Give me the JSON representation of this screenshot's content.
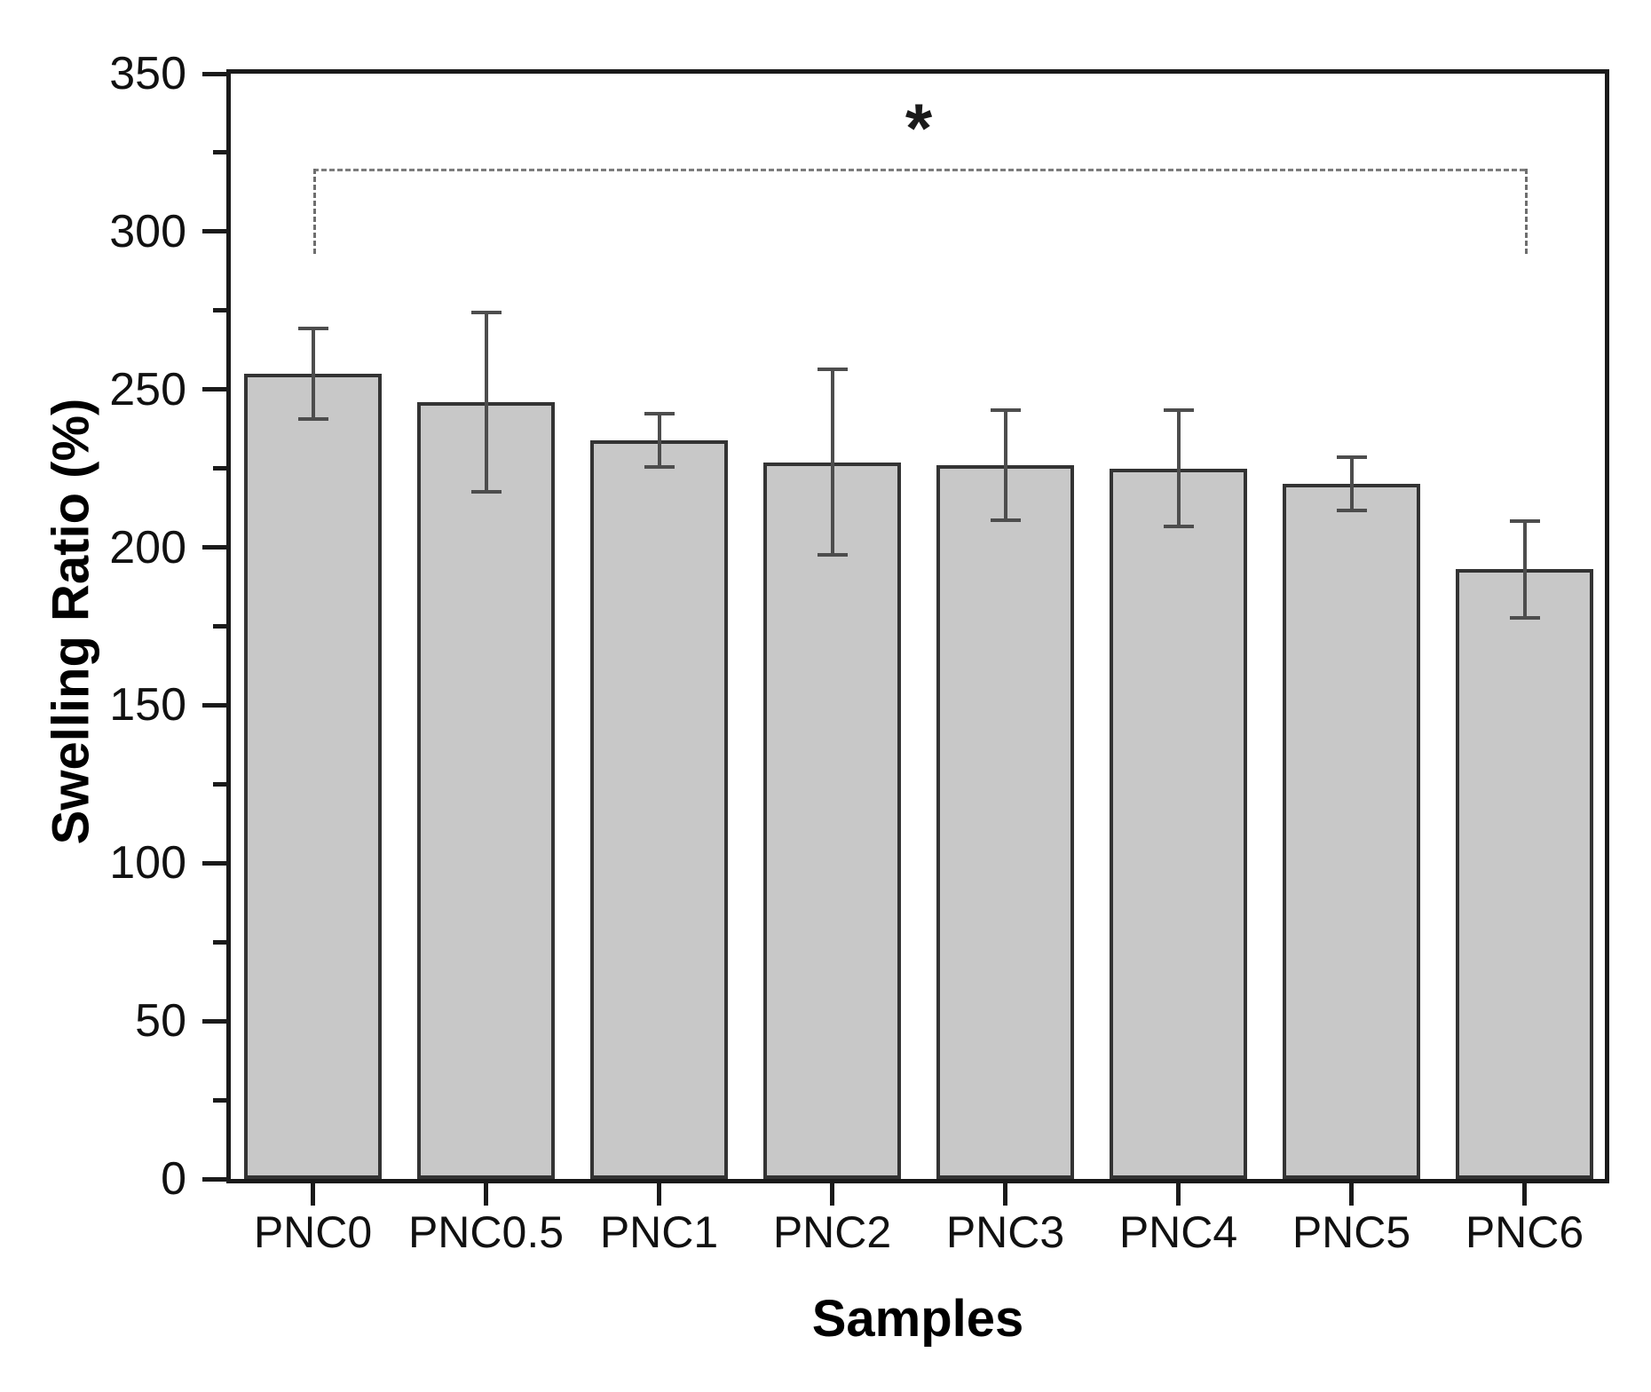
{
  "chart_data": {
    "type": "bar",
    "title": "",
    "xlabel": "Samples",
    "ylabel": "Swelling Ratio (%)",
    "categories": [
      "PNC0",
      "PNC0.5",
      "PNC1",
      "PNC2",
      "PNC3",
      "PNC4",
      "PNC5",
      "PNC6"
    ],
    "values": [
      255,
      246,
      234,
      227,
      226,
      225,
      220,
      193
    ],
    "errors": [
      15,
      29,
      9,
      30,
      18,
      19,
      9,
      16
    ],
    "ylim": [
      0,
      350
    ],
    "y_major_step": 50,
    "y_minor_step": 25,
    "y_tick_labels": [
      "0",
      "50",
      "100",
      "150",
      "200",
      "250",
      "300",
      "350"
    ],
    "grid": "off",
    "legend": "none",
    "bar_fill_color": "#c8c8c8",
    "bar_edge_color": "#333333",
    "error_bar_color": "#4d4d4d",
    "axis_color": "#1a1a1a",
    "annotation": {
      "text": "*",
      "kind": "significance-bracket",
      "from_category": "PNC0",
      "to_category": "PNC6",
      "bracket_y": 320,
      "descender_to_y": 293,
      "line_style": "dashed",
      "line_color": "#7d7d7d"
    }
  }
}
